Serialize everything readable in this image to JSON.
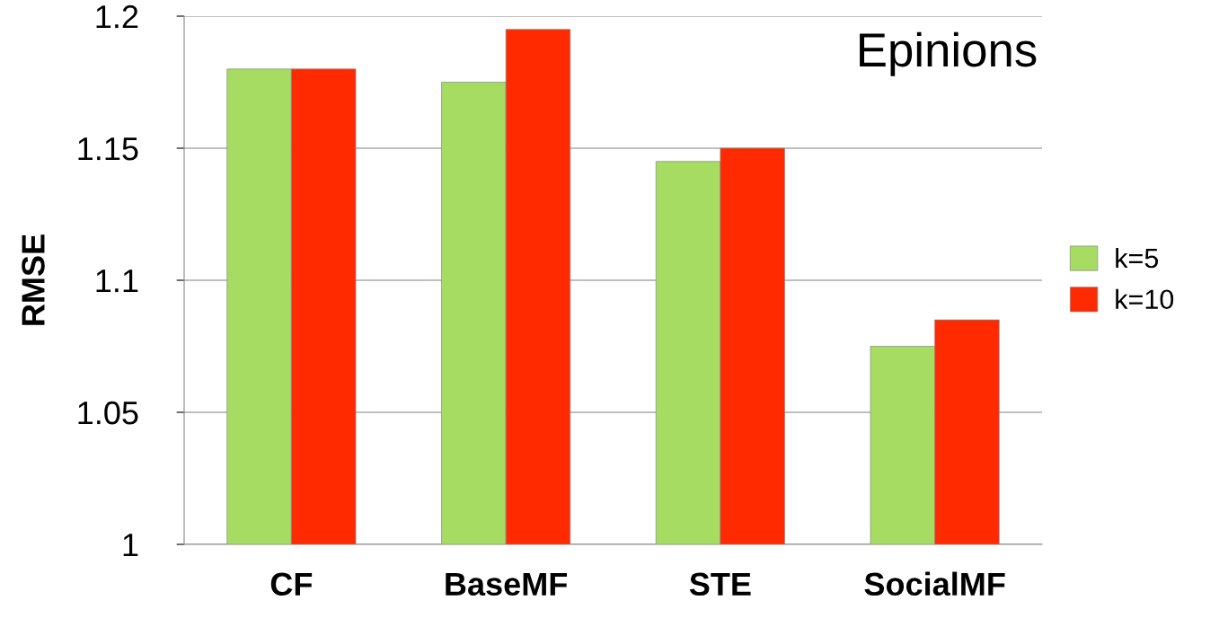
{
  "chart_data": {
    "type": "bar",
    "ylabel": "RMSE",
    "categories": [
      "CF",
      "BaseMF",
      "STE",
      "SocialMF"
    ],
    "series": [
      {
        "name": "k=5",
        "color": "#a6dc62",
        "values": [
          1.18,
          1.175,
          1.145,
          1.075
        ]
      },
      {
        "name": "k=10",
        "color": "#ff2a00",
        "values": [
          1.18,
          1.195,
          1.15,
          1.085
        ]
      }
    ],
    "ylim": [
      1,
      1.2
    ],
    "yticks": [
      1,
      1.05,
      1.1,
      1.15,
      1.2
    ],
    "grid": "y",
    "legend": "right",
    "annotations": [
      "Epinions"
    ]
  }
}
